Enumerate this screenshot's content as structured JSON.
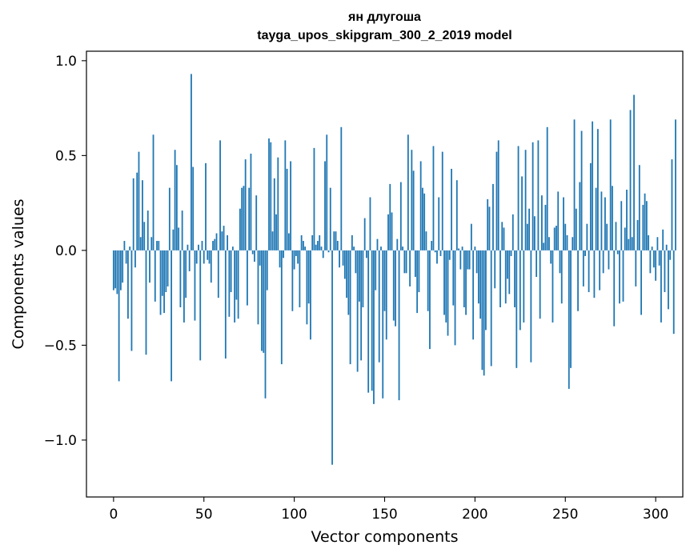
{
  "chart_data": {
    "type": "bar",
    "title": "ян длугоша",
    "subtitle": "tayga_upos_skipgram_300_2_2019 model",
    "xlabel": "Vector components",
    "ylabel": "Components values",
    "xlim": [
      -15,
      315
    ],
    "ylim": [
      -1.3,
      1.05
    ],
    "xticks": [
      0,
      50,
      100,
      150,
      200,
      250,
      300
    ],
    "yticks": [
      -1.0,
      -0.5,
      0.0,
      0.5,
      1.0
    ],
    "xtick_labels": [
      "0",
      "50",
      "100",
      "150",
      "200",
      "250",
      "300"
    ],
    "ytick_labels": [
      "−1.0",
      "−0.5",
      "0.0",
      "0.5",
      "1.0"
    ],
    "bar_color": "#1f77b4",
    "grid": false,
    "values": [
      -0.21,
      -0.2,
      -0.23,
      -0.69,
      -0.21,
      -0.17,
      0.05,
      -0.07,
      -0.36,
      0.02,
      -0.53,
      0.38,
      -0.09,
      0.41,
      0.52,
      0.07,
      0.37,
      0.15,
      -0.55,
      0.21,
      -0.17,
      0.07,
      0.61,
      -0.27,
      0.05,
      0.05,
      -0.34,
      -0.24,
      -0.33,
      -0.22,
      -0.19,
      0.33,
      -0.69,
      0.11,
      0.53,
      0.45,
      0.12,
      -0.3,
      0.21,
      -0.38,
      -0.25,
      0.03,
      -0.11,
      0.93,
      0.44,
      -0.37,
      -0.07,
      0.03,
      -0.58,
      0.05,
      -0.07,
      0.46,
      -0.05,
      -0.07,
      -0.17,
      0.05,
      0.06,
      0.09,
      -0.25,
      0.58,
      0.1,
      0.13,
      -0.57,
      0.08,
      -0.35,
      -0.22,
      0.02,
      -0.38,
      -0.26,
      -0.36,
      0.22,
      0.33,
      0.34,
      0.48,
      -0.29,
      0.33,
      0.51,
      -0.02,
      -0.06,
      0.29,
      -0.39,
      -0.08,
      -0.53,
      -0.54,
      -0.78,
      -0.21,
      0.59,
      0.57,
      0.1,
      0.38,
      0.19,
      0.49,
      -0.09,
      -0.6,
      -0.04,
      0.58,
      0.43,
      0.09,
      0.47,
      -0.32,
      -0.1,
      -0.03,
      -0.07,
      -0.3,
      0.08,
      0.05,
      0.02,
      -0.39,
      -0.28,
      -0.47,
      0.08,
      0.54,
      0.03,
      0.05,
      0.08,
      0.02,
      -0.04,
      0.47,
      0.61,
      -0.01,
      0.33,
      -1.13,
      0.1,
      0.1,
      0.05,
      -0.09,
      0.65,
      -0.08,
      -0.15,
      -0.25,
      -0.34,
      -0.6,
      0.08,
      0.02,
      -0.12,
      -0.64,
      -0.27,
      -0.58,
      -0.3,
      0.17,
      -0.04,
      -0.75,
      0.28,
      -0.74,
      -0.81,
      -0.21,
      0.06,
      -0.59,
      0.02,
      -0.78,
      -0.32,
      -0.47,
      0.19,
      0.35,
      0.2,
      -0.37,
      -0.4,
      0.06,
      -0.79,
      0.36,
      0.02,
      -0.12,
      -0.12,
      0.61,
      -0.19,
      0.53,
      0.42,
      -0.14,
      -0.33,
      -0.22,
      0.47,
      0.33,
      0.3,
      0.1,
      -0.32,
      -0.52,
      0.05,
      0.55,
      -0.01,
      -0.07,
      0.28,
      -0.03,
      0.52,
      -0.34,
      -0.38,
      -0.45,
      -0.05,
      0.43,
      -0.29,
      -0.5,
      0.37,
      0.01,
      -0.1,
      0.02,
      -0.3,
      -0.34,
      -0.1,
      -0.1,
      0.14,
      -0.47,
      0.02,
      -0.12,
      -0.28,
      -0.36,
      -0.63,
      -0.66,
      -0.42,
      0.27,
      0.23,
      -0.61,
      0.35,
      -0.2,
      0.52,
      0.58,
      -0.3,
      0.15,
      0.12,
      -0.28,
      -0.15,
      -0.23,
      -0.03,
      0.19,
      -0.3,
      -0.62,
      0.55,
      -0.42,
      0.39,
      -0.38,
      0.53,
      0.14,
      0.22,
      -0.59,
      0.57,
      0.18,
      -0.14,
      0.58,
      -0.36,
      0.29,
      0.04,
      0.24,
      0.65,
      0.07,
      -0.07,
      -0.38,
      0.12,
      0.13,
      0.31,
      -0.12,
      -0.28,
      0.28,
      0.14,
      0.08,
      -0.73,
      -0.62,
      0.07,
      0.69,
      0.22,
      -0.32,
      0.36,
      0.63,
      -0.19,
      -0.03,
      0.14,
      -0.22,
      0.46,
      0.68,
      -0.25,
      0.33,
      0.64,
      -0.21,
      0.31,
      -0.12,
      0.28,
      0.14,
      -0.1,
      0.69,
      0.34,
      -0.4,
      0.15,
      -0.02,
      -0.28,
      0.26,
      -0.27,
      0.12,
      0.32,
      0.06,
      0.74,
      0.07,
      0.82,
      -0.19,
      0.16,
      0.45,
      -0.34,
      0.24,
      0.3,
      0.26,
      0.08,
      -0.12,
      0.02,
      -0.09,
      -0.16,
      0.07,
      -0.08,
      -0.38,
      0.11,
      -0.22,
      0.03,
      -0.31,
      -0.05,
      0.48,
      -0.44,
      0.69
    ]
  }
}
